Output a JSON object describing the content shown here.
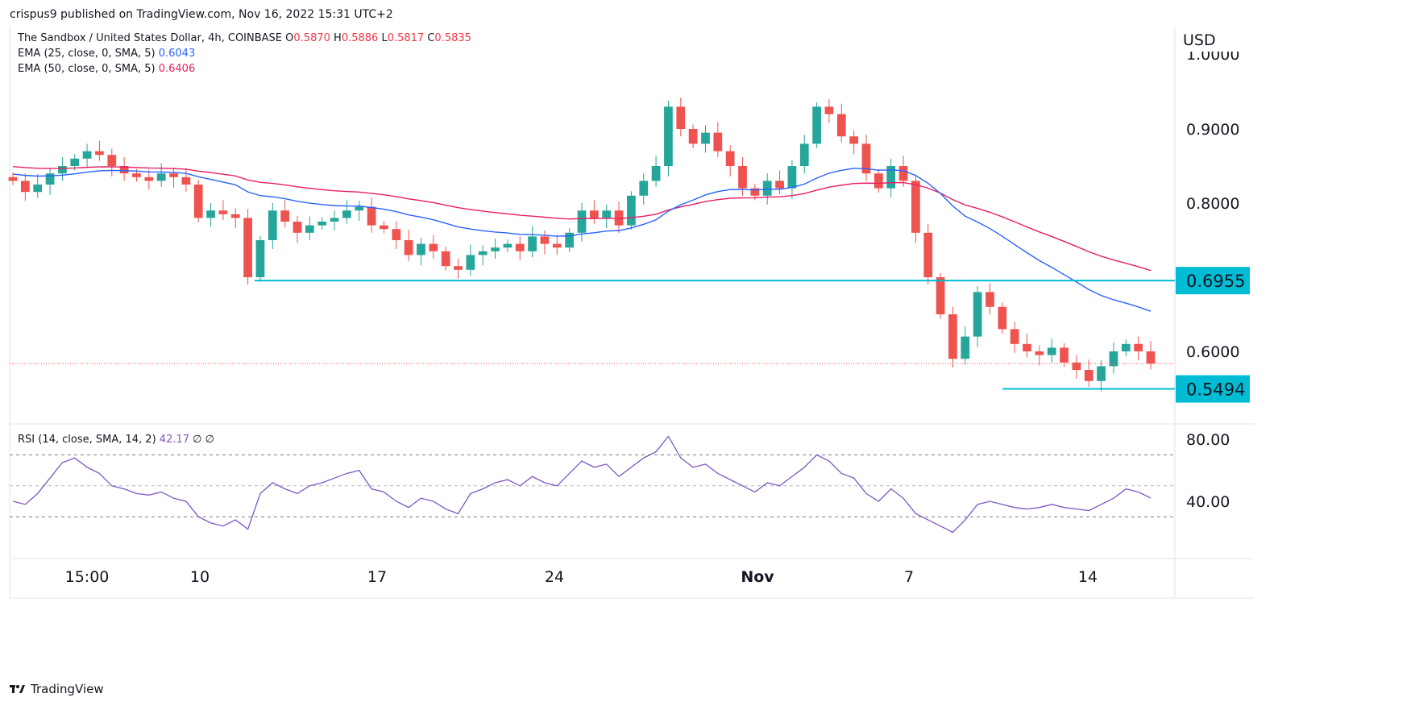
{
  "header": {
    "byline": "crispus9 published on TradingView.com, Nov 16, 2022 15:31 UTC+2",
    "symbol": "The Sandbox / United States Dollar, 4h, COINBASE",
    "ohlc": [
      {
        "label": "O",
        "value": "0.5870"
      },
      {
        "label": "H",
        "value": "0.5886"
      },
      {
        "label": "L",
        "value": "0.5817"
      },
      {
        "label": "C",
        "value": "0.5835"
      }
    ],
    "ema25": {
      "label": "EMA (25, close, 0, SMA, 5)",
      "value": "0.6043",
      "color": "#2962ff"
    },
    "ema50": {
      "label": "EMA (50, close, 0, SMA, 5)",
      "value": "0.6406",
      "color": "#e91e63"
    },
    "rsi": {
      "label": "RSI (14, close, SMA, 14, 2)",
      "value": "42.17",
      "extra1": "∅",
      "extra2": "∅",
      "color": "#7e57c2"
    }
  },
  "footer": {
    "brand": "TradingView"
  },
  "colors": {
    "up": "#26a69a",
    "down": "#ef5350",
    "level": "#00bcd4",
    "ema25": "#2962ff",
    "ema50": "#e91e63",
    "rsi": "#7e57c2"
  },
  "chart_data": {
    "type": "candlestick",
    "title": "The Sandbox / United States Dollar, 4h, COINBASE",
    "currency": "USD",
    "x_ticks": [
      "15:00",
      "10",
      "17",
      "24",
      "Nov",
      "7",
      "14"
    ],
    "price_axis_labels": [
      "0.9000",
      "0.8000",
      "0.6000"
    ],
    "price_axis_partial_label": "1.0000",
    "levels": [
      {
        "value": 0.6955,
        "label": "0.6955"
      },
      {
        "value": 0.5494,
        "label": "0.5494"
      }
    ],
    "current_price": 0.5835,
    "price_range": [
      0.54,
      1.0
    ],
    "candles_close_approx": [
      0.83,
      0.815,
      0.825,
      0.84,
      0.85,
      0.86,
      0.87,
      0.865,
      0.85,
      0.84,
      0.835,
      0.83,
      0.84,
      0.835,
      0.825,
      0.78,
      0.79,
      0.785,
      0.78,
      0.7,
      0.75,
      0.79,
      0.775,
      0.76,
      0.77,
      0.775,
      0.78,
      0.79,
      0.795,
      0.77,
      0.765,
      0.75,
      0.73,
      0.745,
      0.735,
      0.715,
      0.71,
      0.73,
      0.735,
      0.74,
      0.745,
      0.735,
      0.755,
      0.745,
      0.74,
      0.76,
      0.79,
      0.78,
      0.79,
      0.77,
      0.81,
      0.83,
      0.85,
      0.93,
      0.9,
      0.88,
      0.895,
      0.87,
      0.85,
      0.82,
      0.81,
      0.83,
      0.82,
      0.85,
      0.88,
      0.93,
      0.92,
      0.89,
      0.88,
      0.84,
      0.82,
      0.85,
      0.83,
      0.76,
      0.7,
      0.65,
      0.59,
      0.62,
      0.68,
      0.66,
      0.63,
      0.61,
      0.6,
      0.595,
      0.605,
      0.585,
      0.575,
      0.56,
      0.58,
      0.6,
      0.61,
      0.6,
      0.5835
    ],
    "rsi": {
      "ticks": [
        "80.00",
        "40.00"
      ],
      "bands": [
        70,
        50,
        30
      ],
      "values_approx": [
        40,
        38,
        45,
        55,
        65,
        68,
        62,
        58,
        50,
        48,
        45,
        44,
        46,
        42,
        40,
        30,
        26,
        24,
        28,
        22,
        45,
        52,
        48,
        45,
        50,
        52,
        55,
        58,
        60,
        48,
        46,
        40,
        36,
        42,
        40,
        35,
        32,
        45,
        48,
        52,
        54,
        50,
        56,
        52,
        50,
        58,
        66,
        62,
        64,
        56,
        62,
        68,
        72,
        82,
        68,
        62,
        64,
        58,
        54,
        50,
        46,
        52,
        50,
        56,
        62,
        70,
        66,
        58,
        55,
        45,
        40,
        48,
        42,
        32,
        28,
        24,
        20,
        28,
        38,
        40,
        38,
        36,
        35,
        36,
        38,
        36,
        35,
        34,
        38,
        42,
        48,
        46,
        42.17
      ]
    }
  }
}
